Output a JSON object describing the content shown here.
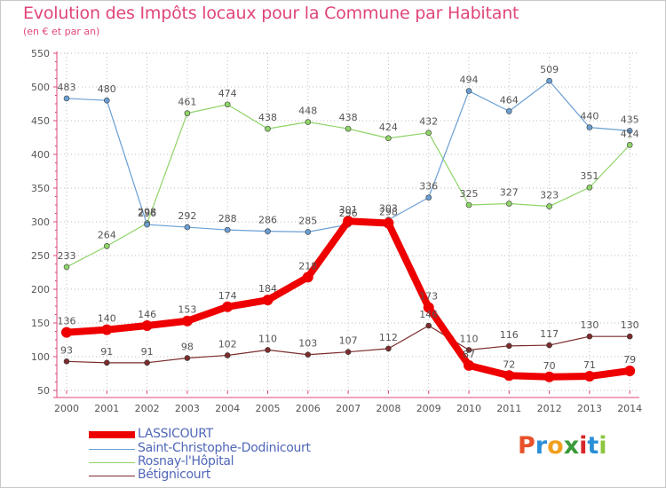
{
  "title": "Evolution des Impôts locaux pour la Commune par Habitant",
  "subtitle": "(en € et par an)",
  "logo": {
    "text": "Proxiti",
    "letters": [
      "P",
      "r",
      "o",
      "x",
      "i",
      "t",
      "i"
    ],
    "colors": [
      "#e8522a",
      "#2a8fd6",
      "#f0a020",
      "#3a9a3a",
      "#d8282a",
      "#2a8fd6",
      "#8cc63f"
    ]
  },
  "chart_data": {
    "type": "line",
    "title": "Evolution des Impôts locaux pour la Commune par Habitant",
    "subtitle": "(en € et par an)",
    "xlabel": "",
    "ylabel": "",
    "ylim": [
      50,
      550
    ],
    "yticks": [
      50,
      100,
      150,
      200,
      250,
      300,
      350,
      400,
      450,
      500,
      550
    ],
    "grid": true,
    "legend_position": "bottom-left",
    "x": [
      2000,
      2001,
      2002,
      2003,
      2004,
      2005,
      2006,
      2007,
      2008,
      2009,
      2010,
      2011,
      2012,
      2013,
      2014
    ],
    "series": [
      {
        "name": "LASSICOURT",
        "color": "#ee0000",
        "width": 8,
        "values": [
          136,
          140,
          146,
          153,
          174,
          184,
          218,
          301,
          298,
          173,
          87,
          72,
          70,
          71,
          79
        ]
      },
      {
        "name": "Saint-Christophe-Dodinicourt",
        "color": "#6a9fd4",
        "width": 1.2,
        "values": [
          483,
          480,
          296,
          292,
          288,
          286,
          285,
          296,
          303,
          336,
          494,
          464,
          509,
          440,
          435
        ]
      },
      {
        "name": "Rosnay-l'Hôpital",
        "color": "#8fd468",
        "width": 1.2,
        "values": [
          233,
          264,
          298,
          461,
          474,
          438,
          448,
          438,
          424,
          432,
          325,
          327,
          323,
          351,
          414
        ]
      },
      {
        "name": "Bétignicourt",
        "color": "#7b2c2c",
        "width": 1.2,
        "values": [
          93,
          91,
          91,
          98,
          102,
          110,
          103,
          107,
          112,
          146,
          110,
          116,
          117,
          130,
          130
        ]
      }
    ]
  }
}
